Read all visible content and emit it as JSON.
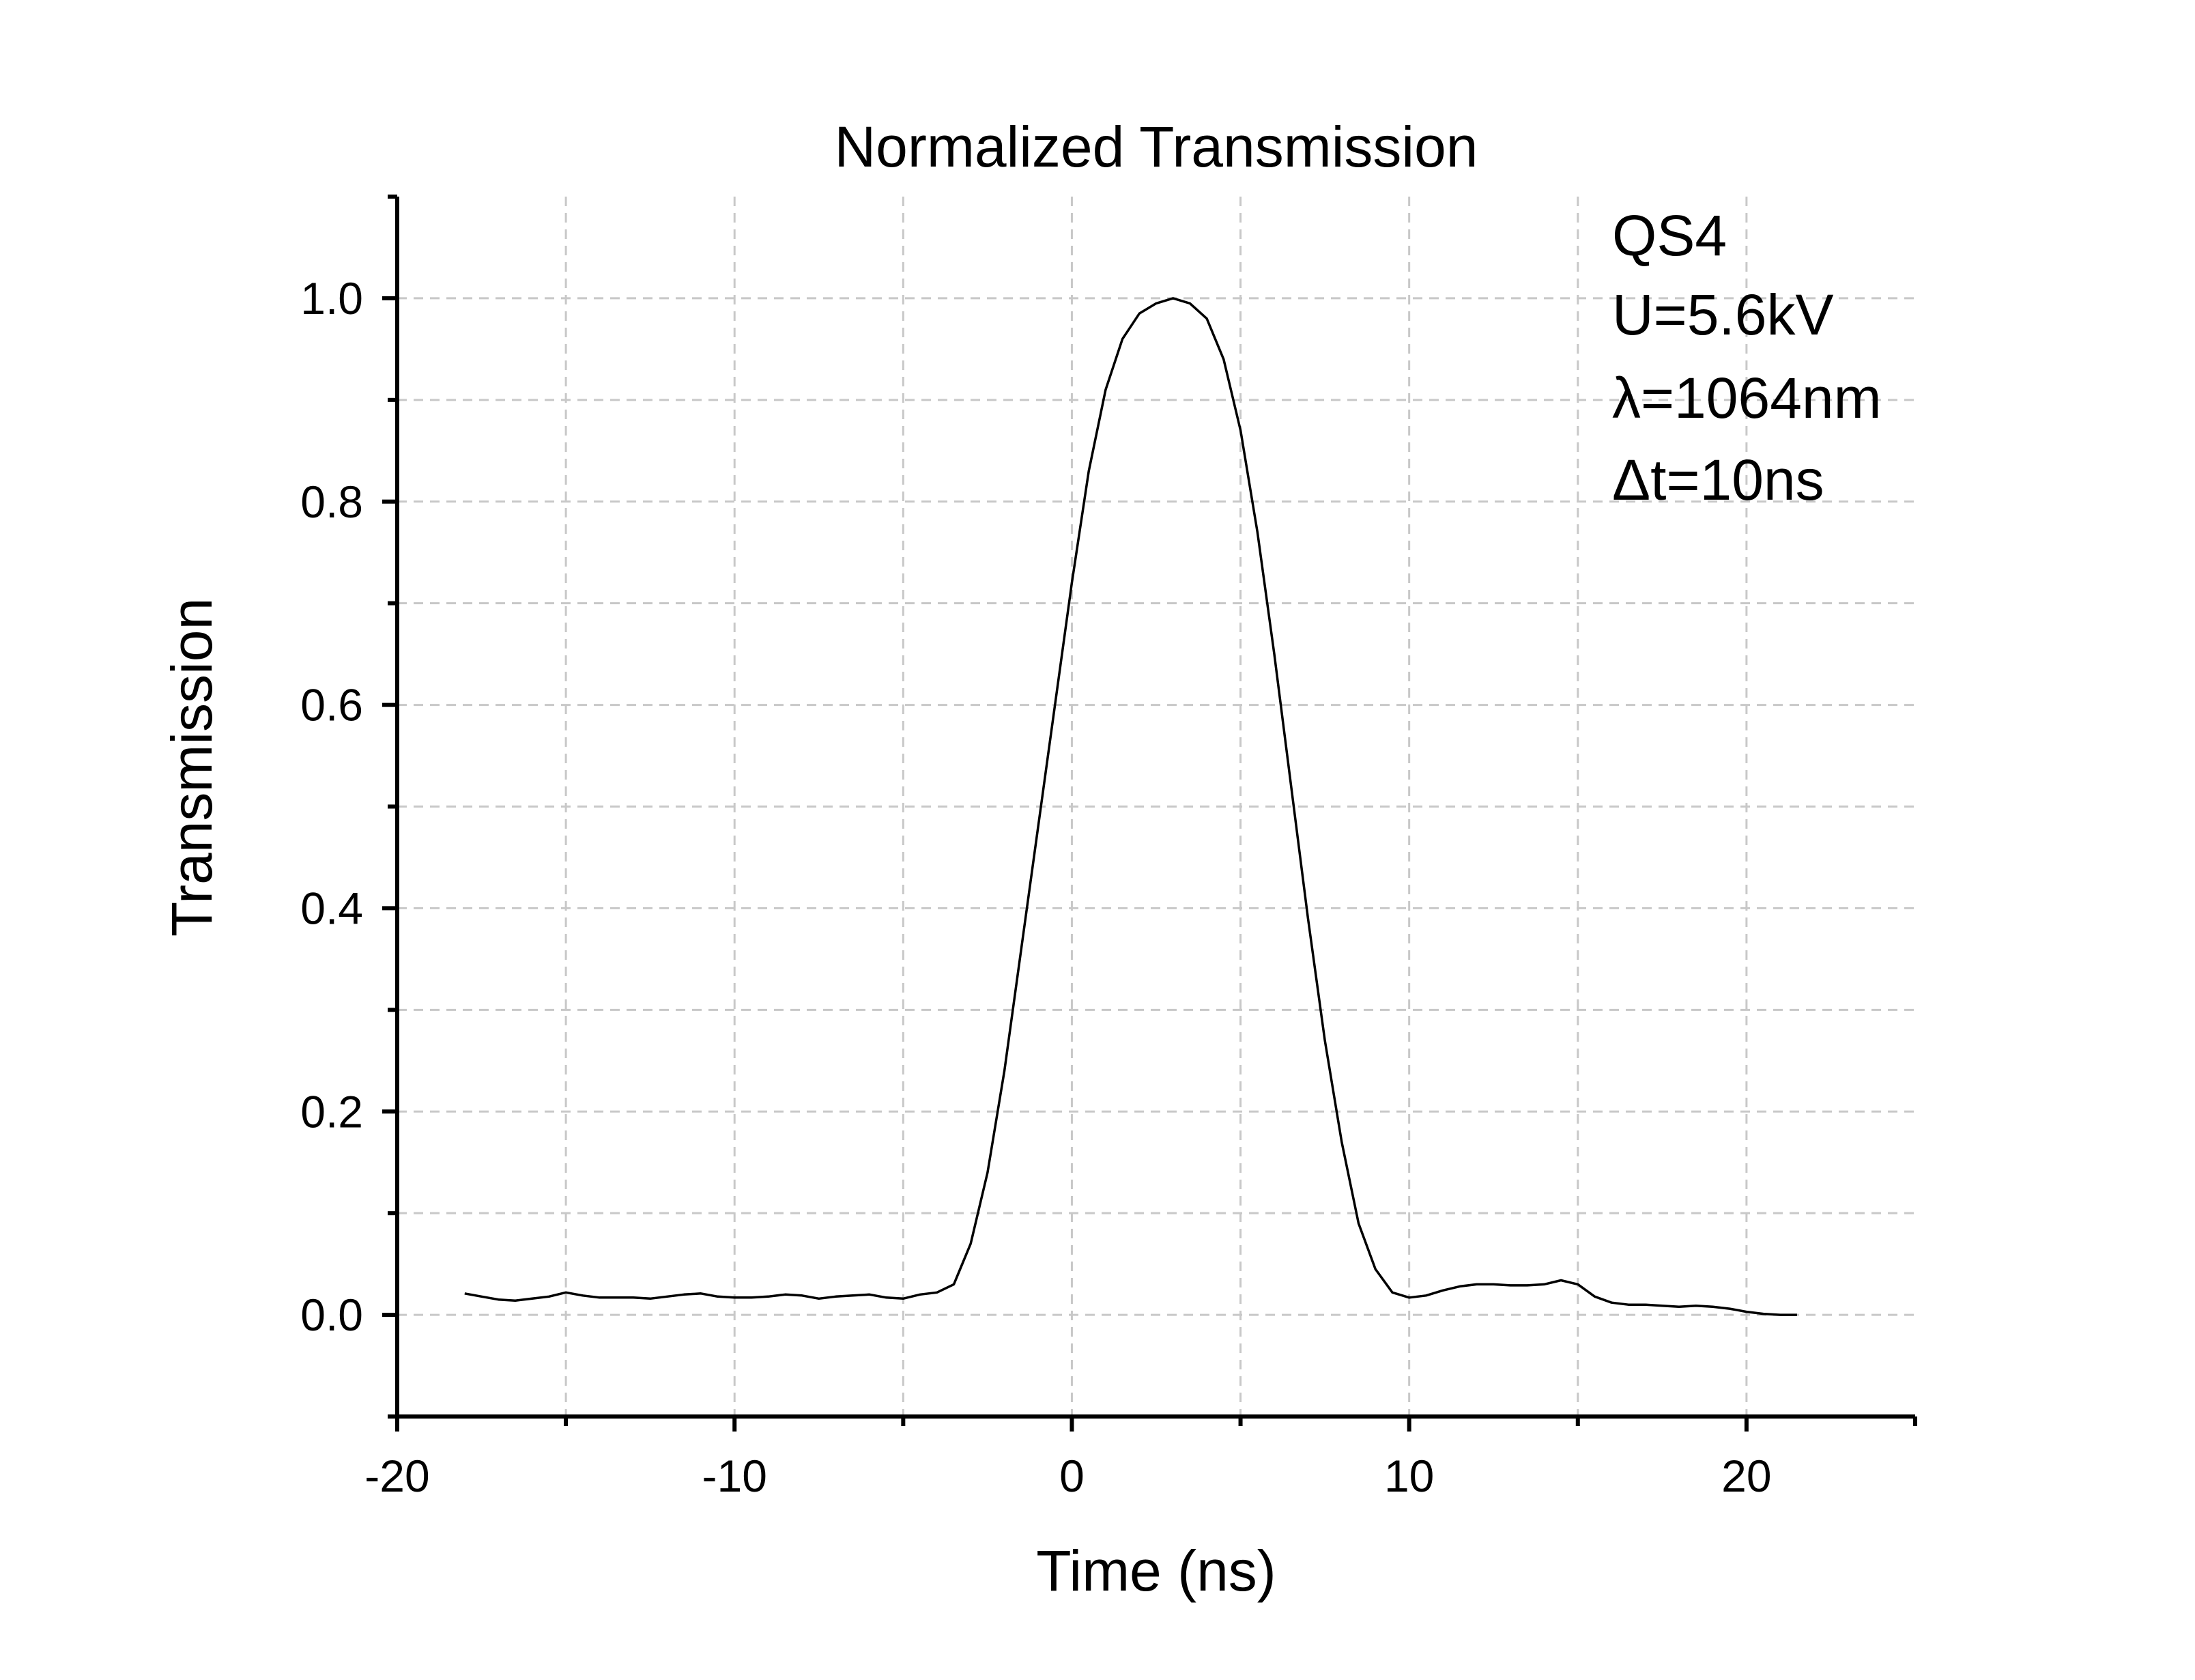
{
  "chart_data": {
    "type": "line",
    "title": "Normalized Transmission",
    "xlabel": "Time (ns)",
    "ylabel": "Transmission",
    "xlim": [
      -20,
      25
    ],
    "ylim": [
      -0.1,
      1.1
    ],
    "x_ticks": [
      -20,
      -10,
      0,
      10,
      20
    ],
    "x_tick_labels": [
      "-20",
      "-10",
      "0",
      "10",
      "20"
    ],
    "x_minor_ticks": [
      -15,
      -5,
      5,
      15,
      25
    ],
    "y_ticks": [
      0.0,
      0.2,
      0.4,
      0.6,
      0.8,
      1.0
    ],
    "y_tick_labels": [
      "0.0",
      "0.2",
      "0.4",
      "0.6",
      "0.8",
      "1.0"
    ],
    "y_minor_ticks": [
      -0.1,
      0.1,
      0.3,
      0.5,
      0.7,
      0.9,
      1.1
    ],
    "grid": true,
    "annotations": [
      "QS4",
      "U=5.6kV",
      "λ=1064nm",
      "Δt=10ns"
    ],
    "series": [
      {
        "color": "#000000",
        "x": [
          -18,
          -17.5,
          -17,
          -16.5,
          -16,
          -15.5,
          -15,
          -14.5,
          -14,
          -13.5,
          -13,
          -12.5,
          -12,
          -11.5,
          -11,
          -10.5,
          -10,
          -9.5,
          -9,
          -8.5,
          -8,
          -7.5,
          -7,
          -6.5,
          -6,
          -5.5,
          -5,
          -4.5,
          -4,
          -3.5,
          -3,
          -2.5,
          -2,
          -1.5,
          -1,
          -0.5,
          0,
          0.5,
          1,
          1.5,
          2,
          2.5,
          3,
          3.5,
          4,
          4.5,
          5,
          5.5,
          6,
          6.5,
          7,
          7.5,
          8,
          8.5,
          9,
          9.5,
          10,
          10.5,
          11,
          11.5,
          12,
          12.5,
          13,
          13.5,
          14,
          14.5,
          15,
          15.5,
          16,
          16.5,
          17,
          17.5,
          18,
          18.5,
          19,
          19.5,
          20,
          20.5,
          21,
          21.5
        ],
        "y": [
          0.021,
          0.018,
          0.015,
          0.014,
          0.016,
          0.018,
          0.022,
          0.019,
          0.017,
          0.017,
          0.017,
          0.016,
          0.018,
          0.02,
          0.021,
          0.018,
          0.017,
          0.017,
          0.018,
          0.02,
          0.019,
          0.016,
          0.018,
          0.019,
          0.02,
          0.017,
          0.016,
          0.02,
          0.022,
          0.03,
          0.07,
          0.14,
          0.24,
          0.36,
          0.48,
          0.6,
          0.72,
          0.83,
          0.91,
          0.96,
          0.985,
          0.995,
          1.0,
          0.995,
          0.98,
          0.94,
          0.87,
          0.77,
          0.65,
          0.52,
          0.39,
          0.27,
          0.17,
          0.09,
          0.045,
          0.022,
          0.017,
          0.019,
          0.024,
          0.028,
          0.03,
          0.03,
          0.029,
          0.029,
          0.03,
          0.034,
          0.03,
          0.018,
          0.012,
          0.01,
          0.01,
          0.009,
          0.008,
          0.009,
          0.008,
          0.006,
          0.003,
          0.001,
          0.0,
          0.0
        ]
      }
    ]
  }
}
